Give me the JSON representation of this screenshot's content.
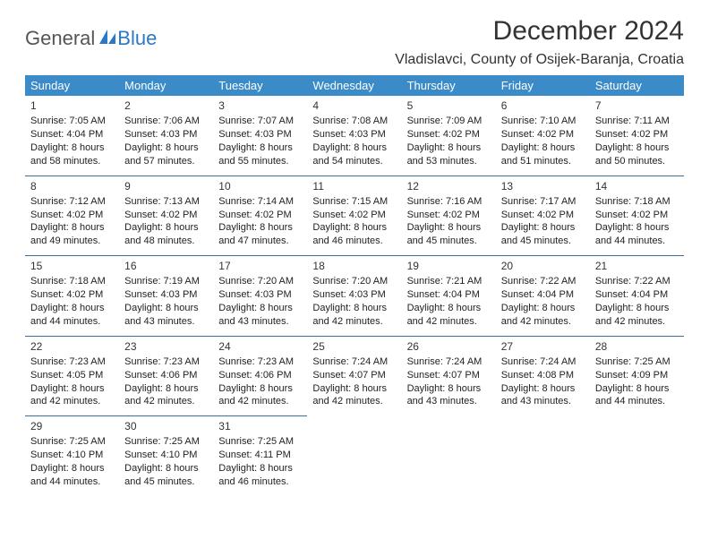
{
  "brand": {
    "part1": "General",
    "part2": "Blue",
    "icon_color": "#2b78c5",
    "text_color": "#555"
  },
  "title": "December 2024",
  "location": "Vladislavci, County of Osijek-Baranja, Croatia",
  "colors": {
    "header_bg": "#3b8bc9",
    "header_fg": "#ffffff",
    "row_border": "#3b6fa0",
    "body_text": "#222222",
    "background": "#ffffff"
  },
  "fonts": {
    "title_size": 30,
    "location_size": 16,
    "th_size": 13,
    "cell_size": 11
  },
  "weekdays": [
    "Sunday",
    "Monday",
    "Tuesday",
    "Wednesday",
    "Thursday",
    "Friday",
    "Saturday"
  ],
  "weeks": [
    [
      {
        "n": "1",
        "sr": "Sunrise: 7:05 AM",
        "ss": "Sunset: 4:04 PM",
        "d1": "Daylight: 8 hours",
        "d2": "and 58 minutes."
      },
      {
        "n": "2",
        "sr": "Sunrise: 7:06 AM",
        "ss": "Sunset: 4:03 PM",
        "d1": "Daylight: 8 hours",
        "d2": "and 57 minutes."
      },
      {
        "n": "3",
        "sr": "Sunrise: 7:07 AM",
        "ss": "Sunset: 4:03 PM",
        "d1": "Daylight: 8 hours",
        "d2": "and 55 minutes."
      },
      {
        "n": "4",
        "sr": "Sunrise: 7:08 AM",
        "ss": "Sunset: 4:03 PM",
        "d1": "Daylight: 8 hours",
        "d2": "and 54 minutes."
      },
      {
        "n": "5",
        "sr": "Sunrise: 7:09 AM",
        "ss": "Sunset: 4:02 PM",
        "d1": "Daylight: 8 hours",
        "d2": "and 53 minutes."
      },
      {
        "n": "6",
        "sr": "Sunrise: 7:10 AM",
        "ss": "Sunset: 4:02 PM",
        "d1": "Daylight: 8 hours",
        "d2": "and 51 minutes."
      },
      {
        "n": "7",
        "sr": "Sunrise: 7:11 AM",
        "ss": "Sunset: 4:02 PM",
        "d1": "Daylight: 8 hours",
        "d2": "and 50 minutes."
      }
    ],
    [
      {
        "n": "8",
        "sr": "Sunrise: 7:12 AM",
        "ss": "Sunset: 4:02 PM",
        "d1": "Daylight: 8 hours",
        "d2": "and 49 minutes."
      },
      {
        "n": "9",
        "sr": "Sunrise: 7:13 AM",
        "ss": "Sunset: 4:02 PM",
        "d1": "Daylight: 8 hours",
        "d2": "and 48 minutes."
      },
      {
        "n": "10",
        "sr": "Sunrise: 7:14 AM",
        "ss": "Sunset: 4:02 PM",
        "d1": "Daylight: 8 hours",
        "d2": "and 47 minutes."
      },
      {
        "n": "11",
        "sr": "Sunrise: 7:15 AM",
        "ss": "Sunset: 4:02 PM",
        "d1": "Daylight: 8 hours",
        "d2": "and 46 minutes."
      },
      {
        "n": "12",
        "sr": "Sunrise: 7:16 AM",
        "ss": "Sunset: 4:02 PM",
        "d1": "Daylight: 8 hours",
        "d2": "and 45 minutes."
      },
      {
        "n": "13",
        "sr": "Sunrise: 7:17 AM",
        "ss": "Sunset: 4:02 PM",
        "d1": "Daylight: 8 hours",
        "d2": "and 45 minutes."
      },
      {
        "n": "14",
        "sr": "Sunrise: 7:18 AM",
        "ss": "Sunset: 4:02 PM",
        "d1": "Daylight: 8 hours",
        "d2": "and 44 minutes."
      }
    ],
    [
      {
        "n": "15",
        "sr": "Sunrise: 7:18 AM",
        "ss": "Sunset: 4:02 PM",
        "d1": "Daylight: 8 hours",
        "d2": "and 44 minutes."
      },
      {
        "n": "16",
        "sr": "Sunrise: 7:19 AM",
        "ss": "Sunset: 4:03 PM",
        "d1": "Daylight: 8 hours",
        "d2": "and 43 minutes."
      },
      {
        "n": "17",
        "sr": "Sunrise: 7:20 AM",
        "ss": "Sunset: 4:03 PM",
        "d1": "Daylight: 8 hours",
        "d2": "and 43 minutes."
      },
      {
        "n": "18",
        "sr": "Sunrise: 7:20 AM",
        "ss": "Sunset: 4:03 PM",
        "d1": "Daylight: 8 hours",
        "d2": "and 42 minutes."
      },
      {
        "n": "19",
        "sr": "Sunrise: 7:21 AM",
        "ss": "Sunset: 4:04 PM",
        "d1": "Daylight: 8 hours",
        "d2": "and 42 minutes."
      },
      {
        "n": "20",
        "sr": "Sunrise: 7:22 AM",
        "ss": "Sunset: 4:04 PM",
        "d1": "Daylight: 8 hours",
        "d2": "and 42 minutes."
      },
      {
        "n": "21",
        "sr": "Sunrise: 7:22 AM",
        "ss": "Sunset: 4:04 PM",
        "d1": "Daylight: 8 hours",
        "d2": "and 42 minutes."
      }
    ],
    [
      {
        "n": "22",
        "sr": "Sunrise: 7:23 AM",
        "ss": "Sunset: 4:05 PM",
        "d1": "Daylight: 8 hours",
        "d2": "and 42 minutes."
      },
      {
        "n": "23",
        "sr": "Sunrise: 7:23 AM",
        "ss": "Sunset: 4:06 PM",
        "d1": "Daylight: 8 hours",
        "d2": "and 42 minutes."
      },
      {
        "n": "24",
        "sr": "Sunrise: 7:23 AM",
        "ss": "Sunset: 4:06 PM",
        "d1": "Daylight: 8 hours",
        "d2": "and 42 minutes."
      },
      {
        "n": "25",
        "sr": "Sunrise: 7:24 AM",
        "ss": "Sunset: 4:07 PM",
        "d1": "Daylight: 8 hours",
        "d2": "and 42 minutes."
      },
      {
        "n": "26",
        "sr": "Sunrise: 7:24 AM",
        "ss": "Sunset: 4:07 PM",
        "d1": "Daylight: 8 hours",
        "d2": "and 43 minutes."
      },
      {
        "n": "27",
        "sr": "Sunrise: 7:24 AM",
        "ss": "Sunset: 4:08 PM",
        "d1": "Daylight: 8 hours",
        "d2": "and 43 minutes."
      },
      {
        "n": "28",
        "sr": "Sunrise: 7:25 AM",
        "ss": "Sunset: 4:09 PM",
        "d1": "Daylight: 8 hours",
        "d2": "and 44 minutes."
      }
    ],
    [
      {
        "n": "29",
        "sr": "Sunrise: 7:25 AM",
        "ss": "Sunset: 4:10 PM",
        "d1": "Daylight: 8 hours",
        "d2": "and 44 minutes."
      },
      {
        "n": "30",
        "sr": "Sunrise: 7:25 AM",
        "ss": "Sunset: 4:10 PM",
        "d1": "Daylight: 8 hours",
        "d2": "and 45 minutes."
      },
      {
        "n": "31",
        "sr": "Sunrise: 7:25 AM",
        "ss": "Sunset: 4:11 PM",
        "d1": "Daylight: 8 hours",
        "d2": "and 46 minutes."
      },
      null,
      null,
      null,
      null
    ]
  ]
}
